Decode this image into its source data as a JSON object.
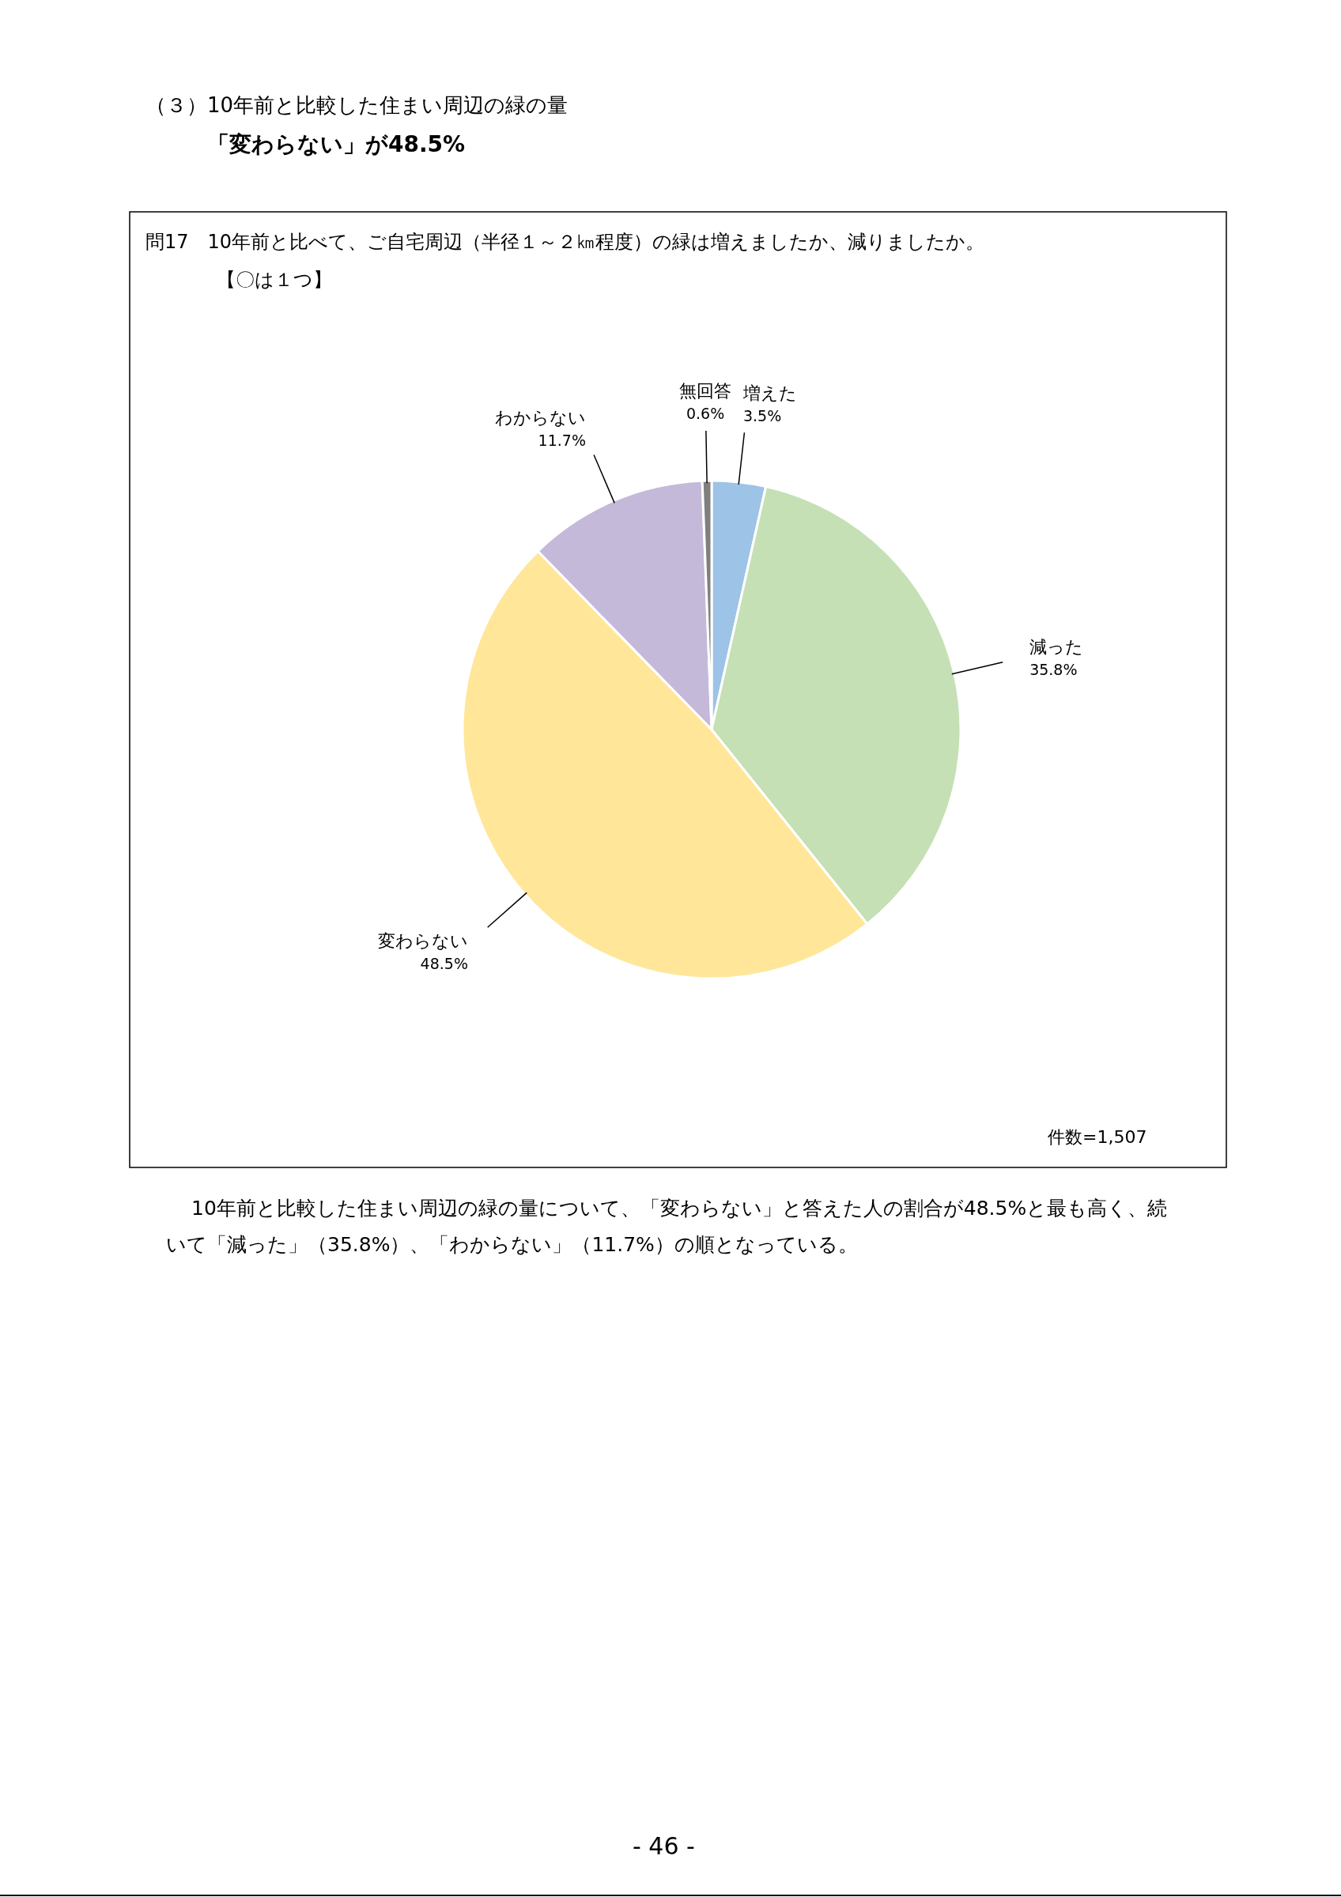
{
  "chart_data": {
    "type": "pie",
    "title": "（３）10年前と比較した住まい周辺の緑の量",
    "subtitle": "「変わらない」が48.5%",
    "categories": [
      "増えた",
      "減った",
      "変わらない",
      "わからない",
      "無回答"
    ],
    "values": [
      3.5,
      35.8,
      48.5,
      11.7,
      0.6
    ],
    "colors": [
      "#9dc3e6",
      "#c5e0b4",
      "#ffe699",
      "#c5b9da",
      "#7f7f7f"
    ],
    "value_labels": [
      "3.5%",
      "35.8%",
      "48.5%",
      "11.7%",
      "0.6%"
    ],
    "annotations": [
      "問17　10年前と比べて、ご自宅周辺（半径１～２㎞程度）の緑は増えましたか、減りましたか。",
      "【〇は１つ】",
      "件数=1,507",
      "10年前と比較した住まい周辺の緑の量について、「変わらない」と答えた人の割合が48.5%と最も高く、続いて「減った」（35.8%）、「わからない」（11.7%）の順となっている。",
      "- 46 -"
    ]
  }
}
